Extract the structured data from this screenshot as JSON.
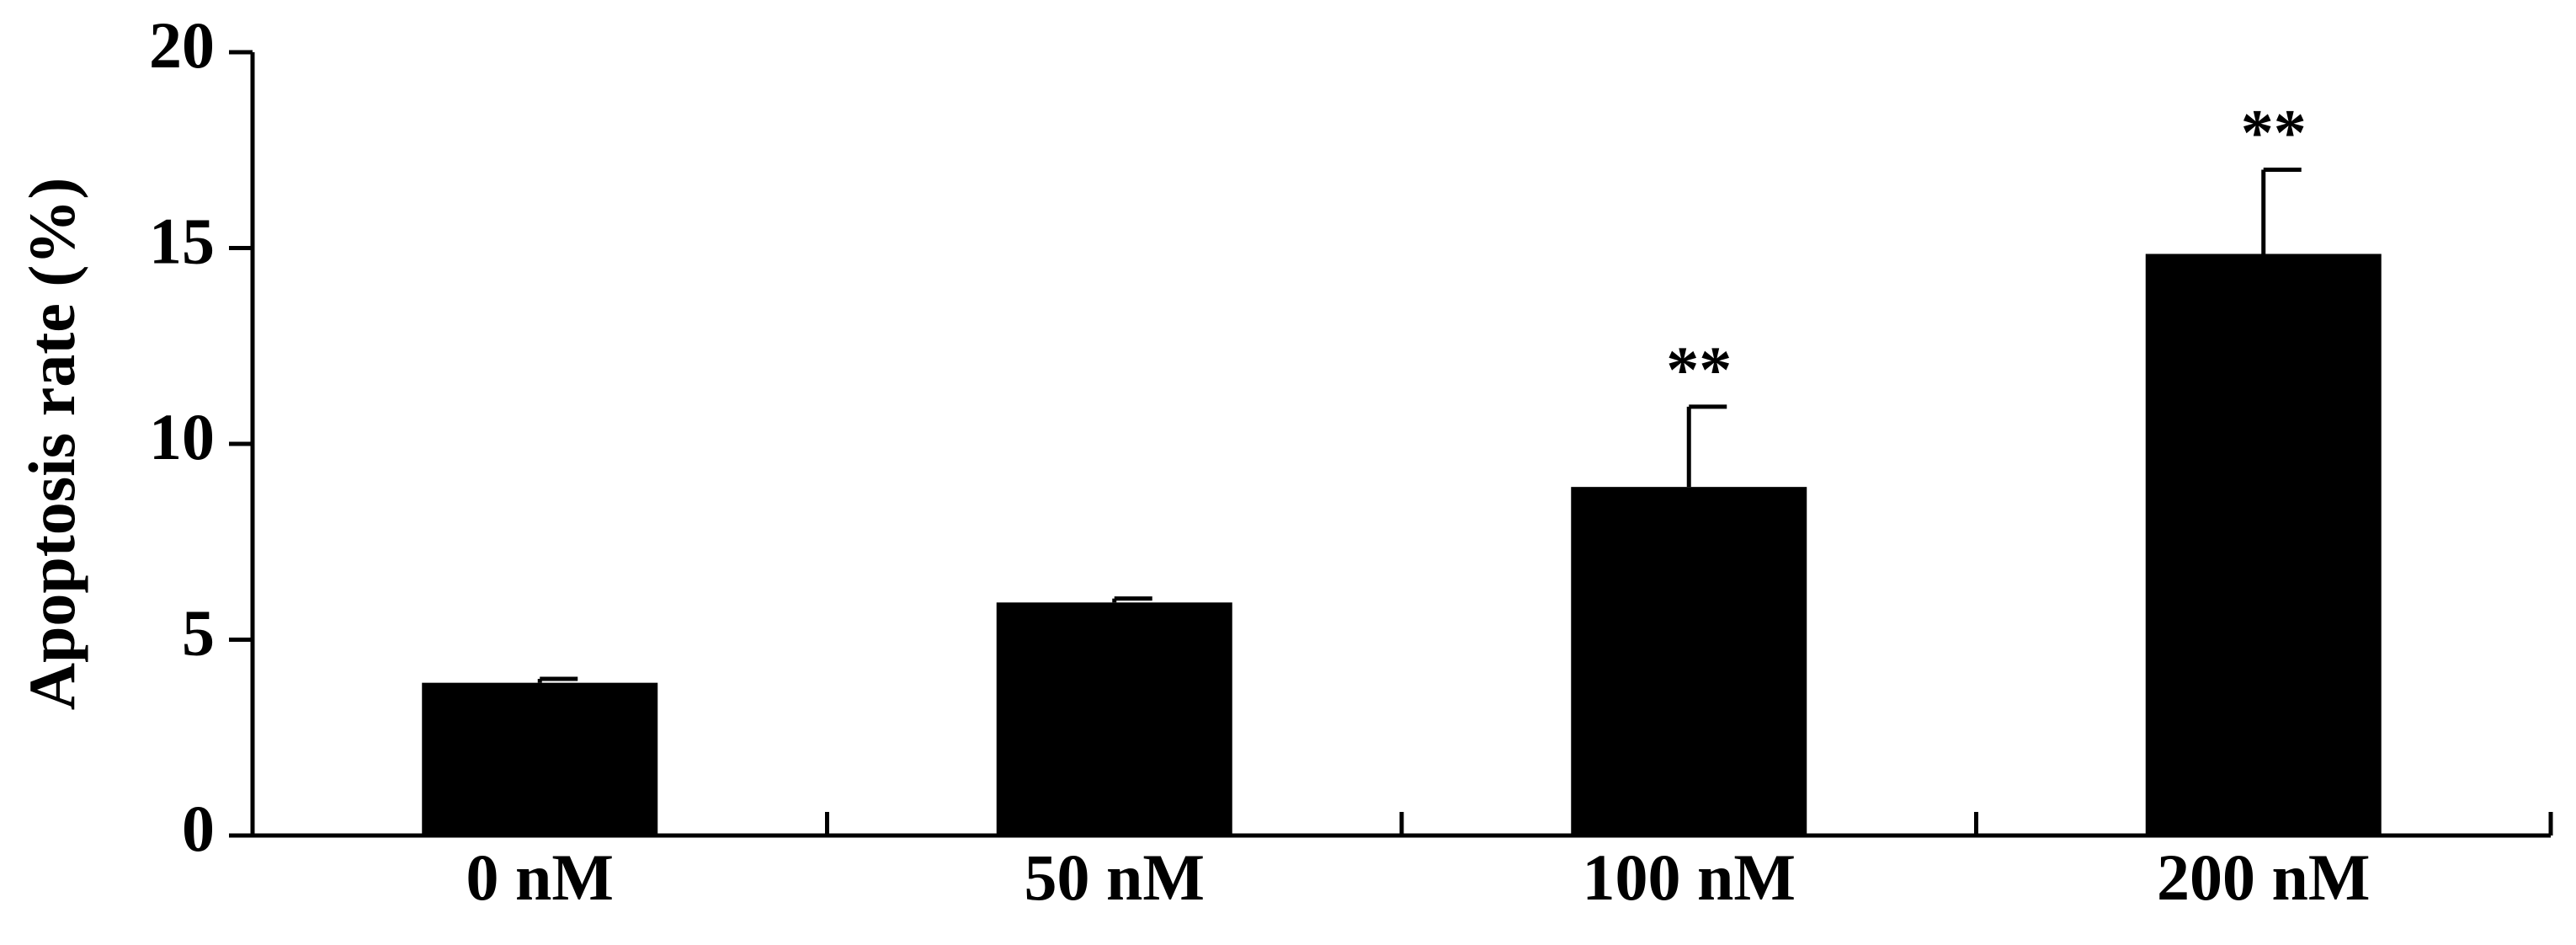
{
  "chart_data": {
    "type": "bar",
    "title": "",
    "xlabel": "",
    "ylabel": "Apoptosis rate (%)",
    "ylim": [
      0,
      20
    ],
    "yticks": [
      "0",
      "5",
      "10",
      "15",
      "20"
    ],
    "categories": [
      "0 nM",
      "50 nM",
      "100 nM",
      "200 nM"
    ],
    "values": [
      3.9,
      5.95,
      8.9,
      14.85
    ],
    "errors": [
      0.1,
      0.1,
      2.05,
      2.15
    ],
    "annotations": [
      "",
      "",
      "**",
      "**"
    ],
    "bar_color": "#000000",
    "grid": false,
    "legend": "none"
  }
}
